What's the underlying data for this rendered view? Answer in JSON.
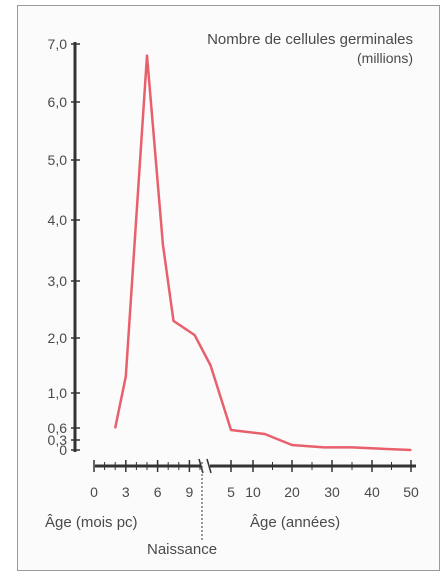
{
  "chart_data": {
    "type": "line",
    "title": "Nombre de cellules germinales",
    "ylabel": "(millions)",
    "y_ticks": [
      "7,0",
      "6,0",
      "5,0",
      "4,0",
      "3,0",
      "2,0",
      "1,0",
      "0,6",
      "0,3",
      "0"
    ],
    "y_tick_values": [
      7.0,
      6.0,
      5.0,
      4.0,
      3.0,
      2.0,
      1.0,
      0.6,
      0.3,
      0
    ],
    "ylim": [
      0,
      7.0
    ],
    "x_ticks_prenatal": [
      "0",
      "3",
      "6",
      "9"
    ],
    "x_ticks_postnatal": [
      "5",
      "10",
      "20",
      "30",
      "40",
      "50"
    ],
    "xlabel_prenatal": "Âge (mois pc)",
    "xlabel_postnatal": "Âge (années)",
    "birth_label": "Naissance",
    "series": [
      {
        "color": "#e8606c",
        "points": [
          {
            "x": "2 mois pc",
            "y": 0.6
          },
          {
            "x": "3 mois pc",
            "y": 1.3
          },
          {
            "x": "5 mois pc",
            "y": 6.8
          },
          {
            "x": "6,5 mois pc",
            "y": 3.6
          },
          {
            "x": "7,5 mois pc",
            "y": 2.3
          },
          {
            "x": "9,5 mois pc",
            "y": 2.05
          },
          {
            "x": "11 mois pc",
            "y": 1.5
          },
          {
            "x": "5 ans",
            "y": 0.55
          },
          {
            "x": "13 ans",
            "y": 0.45
          },
          {
            "x": "20 ans",
            "y": 0.15
          },
          {
            "x": "28 ans",
            "y": 0.08
          },
          {
            "x": "35 ans",
            "y": 0.08
          },
          {
            "x": "42 ans",
            "y": 0.04
          },
          {
            "x": "50 ans",
            "y": 0.0
          }
        ]
      }
    ]
  }
}
